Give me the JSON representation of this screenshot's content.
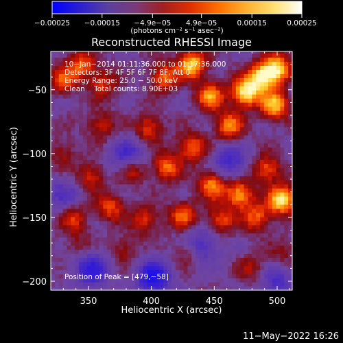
{
  "chart_data": {
    "type": "heatmap",
    "title": "Reconstructed RHESSI Image",
    "xlabel": "Heliocentric X (arcsec)",
    "ylabel": "Heliocentric Y (arcsec)",
    "xlim": [
      320,
      512
    ],
    "ylim": [
      -207,
      -20
    ],
    "x_ticks": [
      350,
      400,
      450,
      500
    ],
    "y_ticks": [
      -50,
      -100,
      -150,
      -200
    ],
    "x_tick_labels": [
      "350",
      "400",
      "450",
      "500"
    ],
    "y_tick_labels": [
      "−50",
      "−100",
      "−150",
      "−200"
    ],
    "colorbar": {
      "range": [
        -0.00025,
        0.00025
      ],
      "units": "(photons cm⁻² s⁻¹ asec⁻²)",
      "ticks": [
        -0.00025,
        -0.00015,
        -4.9e-05,
        4.9e-05,
        0.00015,
        0.00025
      ],
      "tick_labels": [
        "−0.00025",
        "−0.00015",
        "−4.9e−05",
        "4.9e−05",
        "0.00015",
        "0.00025"
      ],
      "colors": [
        "#0000ff",
        "#2a1fd0",
        "#5a3fa0",
        "#7a3a7a",
        "#a02020",
        "#e03000",
        "#ff7000",
        "#ffb030",
        "#ffe070",
        "#ffffff"
      ]
    },
    "annotations": {
      "lines": [
        "10−Jan−2014 01:11:36.000 to 01:17:36.000",
        "Detectors: 3F 4F 5F 6F 7F 8F, Att 0",
        "Energy Range: 25.0 − 50.0 keV",
        "Clean    Total counts: 8.90E+03"
      ],
      "peak": "Position of Peak = [479,−58]"
    },
    "peak_position": [
      479,
      -58
    ],
    "total_counts": 8900,
    "energy_range_keV": [
      25.0,
      50.0
    ],
    "hot_regions": [
      {
        "x": 330,
        "y": -42,
        "level": 0.5
      },
      {
        "x": 345,
        "y": -30,
        "level": 0.55
      },
      {
        "x": 362,
        "y": -45,
        "level": 0.45
      },
      {
        "x": 410,
        "y": -40,
        "level": 0.6
      },
      {
        "x": 432,
        "y": -30,
        "level": 0.85
      },
      {
        "x": 447,
        "y": -55,
        "level": 0.7
      },
      {
        "x": 475,
        "y": -52,
        "level": 0.95
      },
      {
        "x": 488,
        "y": -40,
        "level": 0.9
      },
      {
        "x": 500,
        "y": -33,
        "level": 0.85
      },
      {
        "x": 498,
        "y": -62,
        "level": 0.8
      },
      {
        "x": 462,
        "y": -78,
        "level": 0.65
      },
      {
        "x": 432,
        "y": -95,
        "level": 0.6
      },
      {
        "x": 398,
        "y": -80,
        "level": 0.5
      },
      {
        "x": 360,
        "y": -78,
        "level": 0.4
      },
      {
        "x": 330,
        "y": -100,
        "level": 0.3
      },
      {
        "x": 352,
        "y": -118,
        "level": 0.45
      },
      {
        "x": 385,
        "y": -112,
        "level": 0.55
      },
      {
        "x": 412,
        "y": -110,
        "level": 0.6
      },
      {
        "x": 448,
        "y": -124,
        "level": 0.7
      },
      {
        "x": 470,
        "y": -132,
        "level": 0.75
      },
      {
        "x": 492,
        "y": -112,
        "level": 0.55
      },
      {
        "x": 504,
        "y": -136,
        "level": 0.95
      },
      {
        "x": 484,
        "y": -150,
        "level": 0.55
      },
      {
        "x": 455,
        "y": -152,
        "level": 0.5
      },
      {
        "x": 425,
        "y": -148,
        "level": 0.55
      },
      {
        "x": 395,
        "y": -152,
        "level": 0.45
      },
      {
        "x": 368,
        "y": -142,
        "level": 0.5
      },
      {
        "x": 338,
        "y": -150,
        "level": 0.45
      },
      {
        "x": 342,
        "y": -172,
        "level": 0.25
      },
      {
        "x": 378,
        "y": -176,
        "level": 0.3
      },
      {
        "x": 428,
        "y": -178,
        "level": 0.3
      },
      {
        "x": 480,
        "y": -190,
        "level": 0.3
      },
      {
        "x": 505,
        "y": -178,
        "level": 0.25
      }
    ],
    "cool_regions": [
      {
        "x": 352,
        "y": -190,
        "level": -0.6
      },
      {
        "x": 402,
        "y": -197,
        "level": -0.75
      },
      {
        "x": 382,
        "y": -103,
        "level": -0.55
      },
      {
        "x": 462,
        "y": -106,
        "level": -0.45
      },
      {
        "x": 330,
        "y": -132,
        "level": -0.35
      },
      {
        "x": 440,
        "y": -172,
        "level": -0.45
      },
      {
        "x": 500,
        "y": -200,
        "level": -0.4
      }
    ]
  },
  "footer": {
    "timestamp": "11−May−2022 16:26"
  }
}
